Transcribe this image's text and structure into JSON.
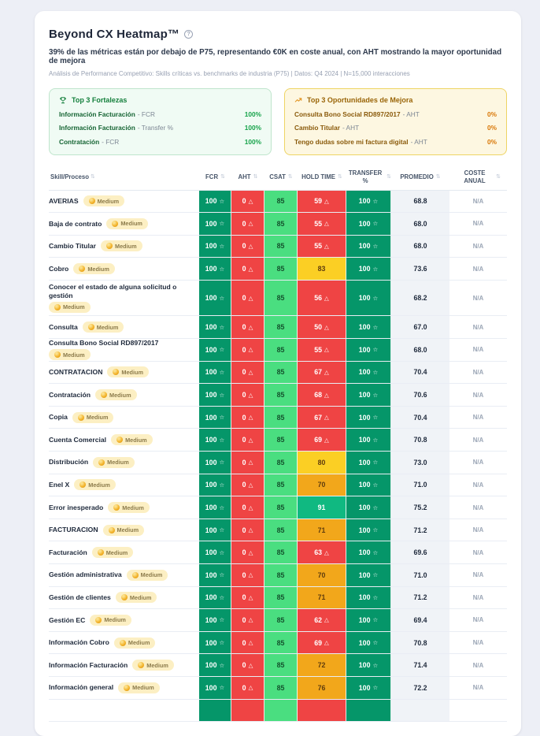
{
  "header": {
    "title": "Beyond CX Heatmap™",
    "subtitle": "39% de las métricas están por debajo de P75, representando €0K en coste anual, con AHT mostrando la mayor oportunidad de mejora",
    "meta": "Análisis de Performance Competitivo: Skills críticas vs. benchmarks de industria (P75) | Datos: Q4 2024 | N=15,000 interacciones"
  },
  "icons": {
    "star": "☆",
    "warning": "△",
    "sort": "⇅",
    "help": "?"
  },
  "colors": {
    "green_dark": "#059669",
    "green_mid": "#10b981",
    "green_light": "#4ade80",
    "red": "#ef4444",
    "yellow": "#fbcf24",
    "orange": "#f2a71b",
    "panel_green_bg": "#f0fbf4",
    "panel_yellow_bg": "#fdf7e1",
    "accent_green": "#16a34a",
    "accent_amber": "#d97706"
  },
  "strengths_panel": {
    "title": "Top 3 Fortalezas",
    "items": [
      {
        "skill": "Información Facturación",
        "metric": "- FCR",
        "value": "100%"
      },
      {
        "skill": "Información Facturación",
        "metric": "- Transfer %",
        "value": "100%"
      },
      {
        "skill": "Contratación",
        "metric": "- FCR",
        "value": "100%"
      }
    ]
  },
  "opportunities_panel": {
    "title": "Top 3 Oportunidades de Mejora",
    "items": [
      {
        "skill": "Consulta Bono Social RD897/2017",
        "metric": "- AHT",
        "value": "0%"
      },
      {
        "skill": "Cambio Titular",
        "metric": "- AHT",
        "value": "0%"
      },
      {
        "skill": "Tengo dudas sobre mi factura digital",
        "metric": "- AHT",
        "value": "0%"
      }
    ]
  },
  "table": {
    "badge_label": "Medium",
    "columns": [
      {
        "label": "Skill/Proceso"
      },
      {
        "label": "FCR"
      },
      {
        "label": "AHT"
      },
      {
        "label": "CSAT"
      },
      {
        "label": "HOLD TIME"
      },
      {
        "label": "TRANSFER %"
      },
      {
        "label": "PROMEDIO"
      },
      {
        "label": "COSTE ANUAL"
      }
    ],
    "rows": [
      {
        "skill": "AVERIAS",
        "fcr": "100",
        "aht": "0",
        "csat": "85",
        "hold": "59",
        "hold_level": "red",
        "transfer": "100",
        "promedio": "68.8",
        "coste": "N/A"
      },
      {
        "skill": "Baja de contrato",
        "fcr": "100",
        "aht": "0",
        "csat": "85",
        "hold": "55",
        "hold_level": "red",
        "transfer": "100",
        "promedio": "68.0",
        "coste": "N/A"
      },
      {
        "skill": "Cambio Titular",
        "fcr": "100",
        "aht": "0",
        "csat": "85",
        "hold": "55",
        "hold_level": "red",
        "transfer": "100",
        "promedio": "68.0",
        "coste": "N/A"
      },
      {
        "skill": "Cobro",
        "fcr": "100",
        "aht": "0",
        "csat": "85",
        "hold": "83",
        "hold_level": "yellow",
        "transfer": "100",
        "promedio": "73.6",
        "coste": "N/A"
      },
      {
        "skill": "Conocer el estado de alguna solicitud o gestión",
        "tall": true,
        "fcr": "100",
        "aht": "0",
        "csat": "85",
        "hold": "56",
        "hold_level": "red",
        "transfer": "100",
        "promedio": "68.2",
        "coste": "N/A"
      },
      {
        "skill": "Consulta",
        "fcr": "100",
        "aht": "0",
        "csat": "85",
        "hold": "50",
        "hold_level": "red",
        "transfer": "100",
        "promedio": "67.0",
        "coste": "N/A"
      },
      {
        "skill": "Consulta Bono Social RD897/2017",
        "fcr": "100",
        "aht": "0",
        "csat": "85",
        "hold": "55",
        "hold_level": "red",
        "transfer": "100",
        "promedio": "68.0",
        "coste": "N/A"
      },
      {
        "skill": "CONTRATACION",
        "fcr": "100",
        "aht": "0",
        "csat": "85",
        "hold": "67",
        "hold_level": "red",
        "transfer": "100",
        "promedio": "70.4",
        "coste": "N/A"
      },
      {
        "skill": "Contratación",
        "fcr": "100",
        "aht": "0",
        "csat": "85",
        "hold": "68",
        "hold_level": "red",
        "transfer": "100",
        "promedio": "70.6",
        "coste": "N/A"
      },
      {
        "skill": "Copia",
        "fcr": "100",
        "aht": "0",
        "csat": "85",
        "hold": "67",
        "hold_level": "red",
        "transfer": "100",
        "promedio": "70.4",
        "coste": "N/A"
      },
      {
        "skill": "Cuenta Comercial",
        "fcr": "100",
        "aht": "0",
        "csat": "85",
        "hold": "69",
        "hold_level": "red",
        "transfer": "100",
        "promedio": "70.8",
        "coste": "N/A"
      },
      {
        "skill": "Distribución",
        "fcr": "100",
        "aht": "0",
        "csat": "85",
        "hold": "80",
        "hold_level": "yellow",
        "transfer": "100",
        "promedio": "73.0",
        "coste": "N/A"
      },
      {
        "skill": "Enel X",
        "fcr": "100",
        "aht": "0",
        "csat": "85",
        "hold": "70",
        "hold_level": "orange",
        "transfer": "100",
        "promedio": "71.0",
        "coste": "N/A"
      },
      {
        "skill": "Error inesperado",
        "fcr": "100",
        "aht": "0",
        "csat": "85",
        "hold": "91",
        "hold_level": "green",
        "transfer": "100",
        "promedio": "75.2",
        "coste": "N/A"
      },
      {
        "skill": "FACTURACION",
        "fcr": "100",
        "aht": "0",
        "csat": "85",
        "hold": "71",
        "hold_level": "orange",
        "transfer": "100",
        "promedio": "71.2",
        "coste": "N/A"
      },
      {
        "skill": "Facturación",
        "fcr": "100",
        "aht": "0",
        "csat": "85",
        "hold": "63",
        "hold_level": "red",
        "transfer": "100",
        "promedio": "69.6",
        "coste": "N/A"
      },
      {
        "skill": "Gestión administrativa",
        "fcr": "100",
        "aht": "0",
        "csat": "85",
        "hold": "70",
        "hold_level": "orange",
        "transfer": "100",
        "promedio": "71.0",
        "coste": "N/A"
      },
      {
        "skill": "Gestión de clientes",
        "fcr": "100",
        "aht": "0",
        "csat": "85",
        "hold": "71",
        "hold_level": "orange",
        "transfer": "100",
        "promedio": "71.2",
        "coste": "N/A"
      },
      {
        "skill": "Gestión EC",
        "fcr": "100",
        "aht": "0",
        "csat": "85",
        "hold": "62",
        "hold_level": "red",
        "transfer": "100",
        "promedio": "69.4",
        "coste": "N/A"
      },
      {
        "skill": "Información Cobro",
        "fcr": "100",
        "aht": "0",
        "csat": "85",
        "hold": "69",
        "hold_level": "red",
        "transfer": "100",
        "promedio": "70.8",
        "coste": "N/A"
      },
      {
        "skill": "Información Facturación",
        "fcr": "100",
        "aht": "0",
        "csat": "85",
        "hold": "72",
        "hold_level": "orange",
        "transfer": "100",
        "promedio": "71.4",
        "coste": "N/A"
      },
      {
        "skill": "Información general",
        "fcr": "100",
        "aht": "0",
        "csat": "85",
        "hold": "76",
        "hold_level": "orange",
        "transfer": "100",
        "promedio": "72.2",
        "coste": "N/A"
      },
      {
        "skill": "",
        "partial": true,
        "fcr": "",
        "aht": "",
        "csat": "",
        "hold": "",
        "hold_level": "red",
        "transfer": "",
        "promedio": "",
        "coste": ""
      }
    ]
  }
}
